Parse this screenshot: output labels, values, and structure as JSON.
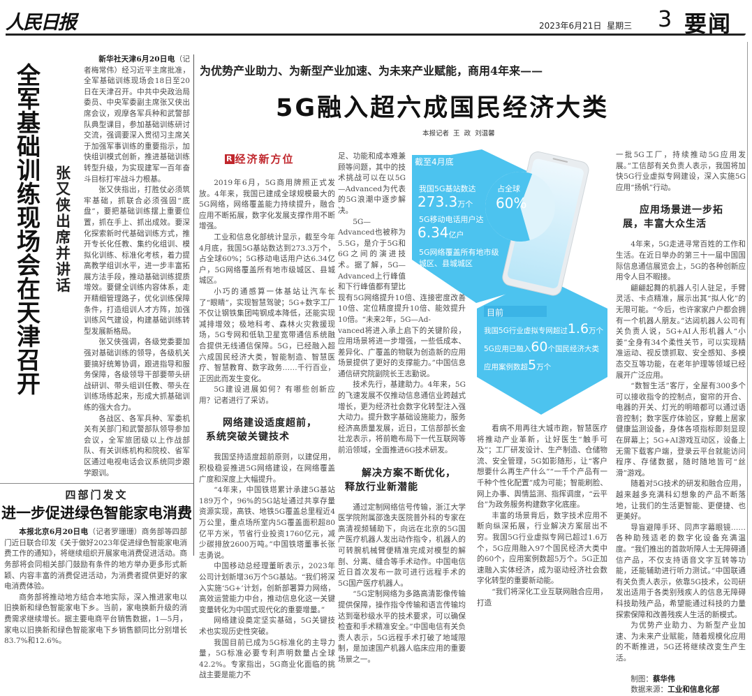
{
  "masthead": {
    "logo": "人民日报",
    "date": "2023年6月21日  星期三",
    "page_number": "3",
    "section": "要闻"
  },
  "left_story": {
    "headline": "全军基础训练现场会在天津召开",
    "subhead": "张又侠出席并讲话",
    "dateline": "新华社天津6月20日电",
    "paragraphs": [
      "（记者梅常伟）经习近平主席批准，全军基础训练现场会18日至20日在天津召开。中共中央政治局委员、中央军委副主席张又侠出席会议，观摩各军兵种和武警部队典型课目，参加基础训练研讨交流，强调要深入贯彻习主席关于加强军事训练的重要指示，加快组训模式创新，推进基础训练转型升级，为实现建军一百年奋斗目标打牢战斗力根基。",
      "张又侠指出，打胜仗必须筑牢基础，抓联合必须强固“底盘”，要把基础训练摆上重要位置，抓在手上、抓出成效。要深化探索新时代基础训练方式，推开专长化任教、集约化组训、模拟化训练、标准化考核，着力提高教学组训水平，进一步丰富拓展方法手段，推动基础训练提质增效。要健全训练内容体系，走开精细管理路子，优化训练保障条件，打造组训人才方阵，加强训练风气建设，构建基础训练转型发展新格局。",
      "张又侠强调，各级党委要加强对基础训练的领导，各级机关要搞好统筹协调，跟进指导和服务保障，各级领导干部要带头研战研训、带头组训任教、带头在训练场练起来，形成大抓基础训练的强大合力。",
      "各战区、各军兵种、军委机关有关部门和武警部队领导参加会议，全军旅团级以上作战部队、有关训练机构和院校、省军区通过电视电话会议系统同步跟学跟训。"
    ]
  },
  "bottom_left_story": {
    "kicker": "四部门发文",
    "headline": "进一步促进绿色智能家电消费",
    "dateline": "本报北京6月20日电",
    "paragraphs": [
      "（记者罗珊珊）商务部等四部门近日联合印发《关于做好2023年促进绿色智能家电消费工作的通知》，将继续组织开展家电消费促进活动。商务部将会同相关部门鼓励有条件的地方举办更多形式新颖、内容丰富的消费促进活动，为消费者提供更好的家电消费体验。",
      "商务部将推动地方结合本地实际，深入推进家电以旧换新和绿色智能家电下乡。当前，家电换新升级的消费需求继续增长。据主要电商平台销售数据，1—5月，家电以旧换新和绿色智能家电下乡销售额同比分别增长83.7%和12.6%。"
    ]
  },
  "main_story": {
    "kicker": "为优势产业助力、为新型产业加速、为未来产业赋能，商用4年来——",
    "headline": "5G融入超六成国民经济大类",
    "byline": "本报记者  王  政  刘温馨",
    "column_label_icon": "R",
    "column_label": "经济新方位",
    "subheads": [
      "网络建设适度超前，",
      "系统突破关键技术",
      "解决方案不断优化，",
      "释放行业新潜能",
      "应用场景进一步拓",
      "展，丰富大众生活"
    ],
    "paragraphs": [
      "2019年6月，5G商用牌照正式发放。4年来，我国已建成全球规模最大的5G网络，网络覆盖能力持续提升，融合应用不断拓展，数字化发展支撑作用不断增强。",
      "工业和信息化部统计显示，截至今年4月底，我国5G基站数达到273.3万个，占全球60%；5G移动电话用户达6.34亿户，5G网络覆盖所有地市级城区、县城城区。",
      "小巧的通感算一体基站让汽车长了“眼睛”，实现智慧驾驶；5G+数字工厂不仅让钢铁集团吨钢成本降低，还能实现减排增效；极地科考、森林火灾救援现场，5G专网和低轨卫星宽带通信系统融合提供无线通信保障。5G，已经融入超六成国民经济大类，智能制造、智慧医疗、智慧教育、数字政务……千行百业，正因此而发生变化。",
      "5G建设进展如何？有哪些创新应用？记者进行了采访。",
      "我国坚持适度超前原则，以建促用，积极稳妥推进5G网络建设，在网络覆盖广度和深度上大幅提升。",
      "“4年来，中国铁塔累计承建5G基站189万个，96%的5G站址通过共享存量资源实现，高铁、地铁5G覆盖总里程近4万公里，重点场所室内5G覆盖面积超80亿平方米，节省行业投资1760亿元，减少碳排放2600万吨。”中国铁塔董事长张志勇说。",
      "中国移动总经理董昕表示，2023年公司计划新增36万个5G基站。“我们将深入实施‘5G+’计划，创新部署算力网络，高效运营能力中台，推动信息化这一关键变量转化为中国式现代化的重要增量。”",
      "网络建设奠定坚实基础，5G关键技术也实现历史性突破。",
      "我国目前已成为5G标准化的主导力量，5G标准必要专利声明数量占全球42.2%。专家指出，5G商业化面临的挑战主要是能力不",
      "足、功能和成本难兼顾等问题，其中的技术挑战可以在以5G—Advanced为代表的5G浪潮中逐步解决。",
      "5G—Advanced也被称为5.5G，是介于5G和6G之间的演进技术。据了解，5G—Advanced上行峰值和下行峰值都有望比现有5G网络提升10倍、连接密度改善10倍、定位精度提升10倍、能效提升10倍。“未来2年，5G—Ad-",
      "vanced将进入承上启下的关键阶段，应用场景将进一步增强，一些低成本、差异化、广覆盖的物联为创造新的应用场景提供了更好的支撑能力。”中国信息通信研究院副院长王志勤说。",
      "技术先行，基建助力。4年来，5G的飞速发展不仅推动信息通信业跨越式增长，更为经济社会数字化转型注入强大动力。提升数字基础设施能力，服务经济高质量发展，近日，工信部部长金壮龙表示，将前瞻布局下一代互联网等前沿领域，全面推进6G技术研发。",
      "通过定制网络信号传输，浙江大学医学院附属邵逸夫医院普外科的专家在高清视频辅助下，向远在北京的5G国产医疗机器人发出动作指令，机器人的可转腕机械臂便精准完成对模型的解剖、分离、缝合等手术动作。中国电信近日首次发布一款可进行远程手术的5G国产医疗机器人。",
      "“5G定制网络为多路高清影像传输提供保障，操作指令传输和语言传输均达到毫秒级水平的技术要求，可以确保检查和手术精准安全。”中国电信有关负责人表示，5G远程手术打破了地域限制，是加速国产机器人临床应用的重要场景之一。",
      "看病不用再往大城市跑，智慧医疗将推动产业革新，让好医生“触手可及”；工厂研发设计、生产制造、仓储物流、安全管理，5G如影随形，让“客户想要什么再生产什么”“一千个产品有一千种个性化配置”成为可能；智能刷脸、网上办事、舆情监测、指挥调度，“云平台”为政务服务构建数字化底座。",
      "丰富的场景背后，数字技术应用不断向纵深拓展，行业解决方案层出不穷。我国5G行业虚拟专网已超过1.6万个，5G应用融入97个国民经济大类中的60个，应用案例数超5万个。5G正加速融入实体经济，成为驱动经济社会数字化转型的重要新动能。",
      "“我们将深化工业互联网融合应用，打造",
      "一批5G工厂，持续推动5G应用发展。”工信部有关负责人表示，我国将加快5G行业虚拟专网建设，深入实施5G应用“扬帆”行动。",
      "4年来，5G走进寻常百姓的工作和生活。在近日举办的第三十一届中国国际信息通信展览会上，5G的各种创新应用令人目不暇接。",
      "翩翩起舞的机器人引人驻足，手臂灵活、卡点精准，展示出其“拟人化”的无限可能。“今后，也许家家户户都会拥有一个机器人朋友。”达闼机器人公司有关负责人说，5G+AI人形机器人“小姜”全身有34个柔性关节，可以实现精准运动、视反馈抓取、安全感知、多模态交互等功能，在老年护理等领域已经展开广泛应用。",
      "“数智生活”客厅，全屋有300多个可以接收指令的控制点，窗帘的开合、电器的开关、灯光的明暗都可以通过语音控制；数字医疗体验区，穿戴上居家健康监测设备，身体各项指标即刻显现在屏幕上；5G+AI游戏互动区，设备上无需下载客户端，登录云平台就能访问程序、存储数据，随时随地皆可“丝滑”游戏。",
      "随着对5G技术的研发和融合应用，越来越多充满科幻想象的产品不断落地，让我们的生活更智能、更便捷、也更美好。",
      "导盲避障手环、同声字幕眼镜……各种助残适老的数字化设备充满温度。“我们推出的首款听障人士无障碍通信产品，不仅支持语音文字互转等功能，还能辅助进行听力测试。”中国联通有关负责人表示，依靠5G技术，公司研发出适用于各类别残疾人的信息无障碍科技助残产品，希望能通过科技的力量探索保障和改善残疾人生活的新模式。",
      "为优势产业助力、为新型产业加速、为未来产业赋能，随着规模化应用的不断推进，5G还将继续改变生产生活。"
    ],
    "credits": {
      "graphic_label": "制图：",
      "graphic_name": "蔡华伟",
      "source_label": "数据来源：",
      "source_name": "工业和信息化部"
    }
  },
  "infographic": {
    "colors": {
      "primary": "#4cc3ef",
      "light": "#8fd9f5"
    },
    "top_label": "截至4月底",
    "stat1_label": "我国5G基站数达",
    "stat1_value": "273.3",
    "stat1_unit": "万个",
    "stat2_label": "5G移动电话用户达",
    "stat2_value": "6.34",
    "stat2_unit": "亿户",
    "stat3_line1": "5G网络覆盖所有地市级",
    "stat3_line2": "城区、县城城区",
    "pie_label": "占全球",
    "pie_value": "60%",
    "pie_share": 60,
    "bottom_label": "目前",
    "line1_prefix": "我国5G行业虚拟专网超过",
    "line1_value": "1.6",
    "line1_suffix": "万个",
    "line2_prefix": "5G应用已融入",
    "line2_value": "60",
    "line2_suffix": "个国民经济大类",
    "line3_prefix": "应用案例数超",
    "line3_value": "5",
    "line3_suffix": "万个"
  }
}
